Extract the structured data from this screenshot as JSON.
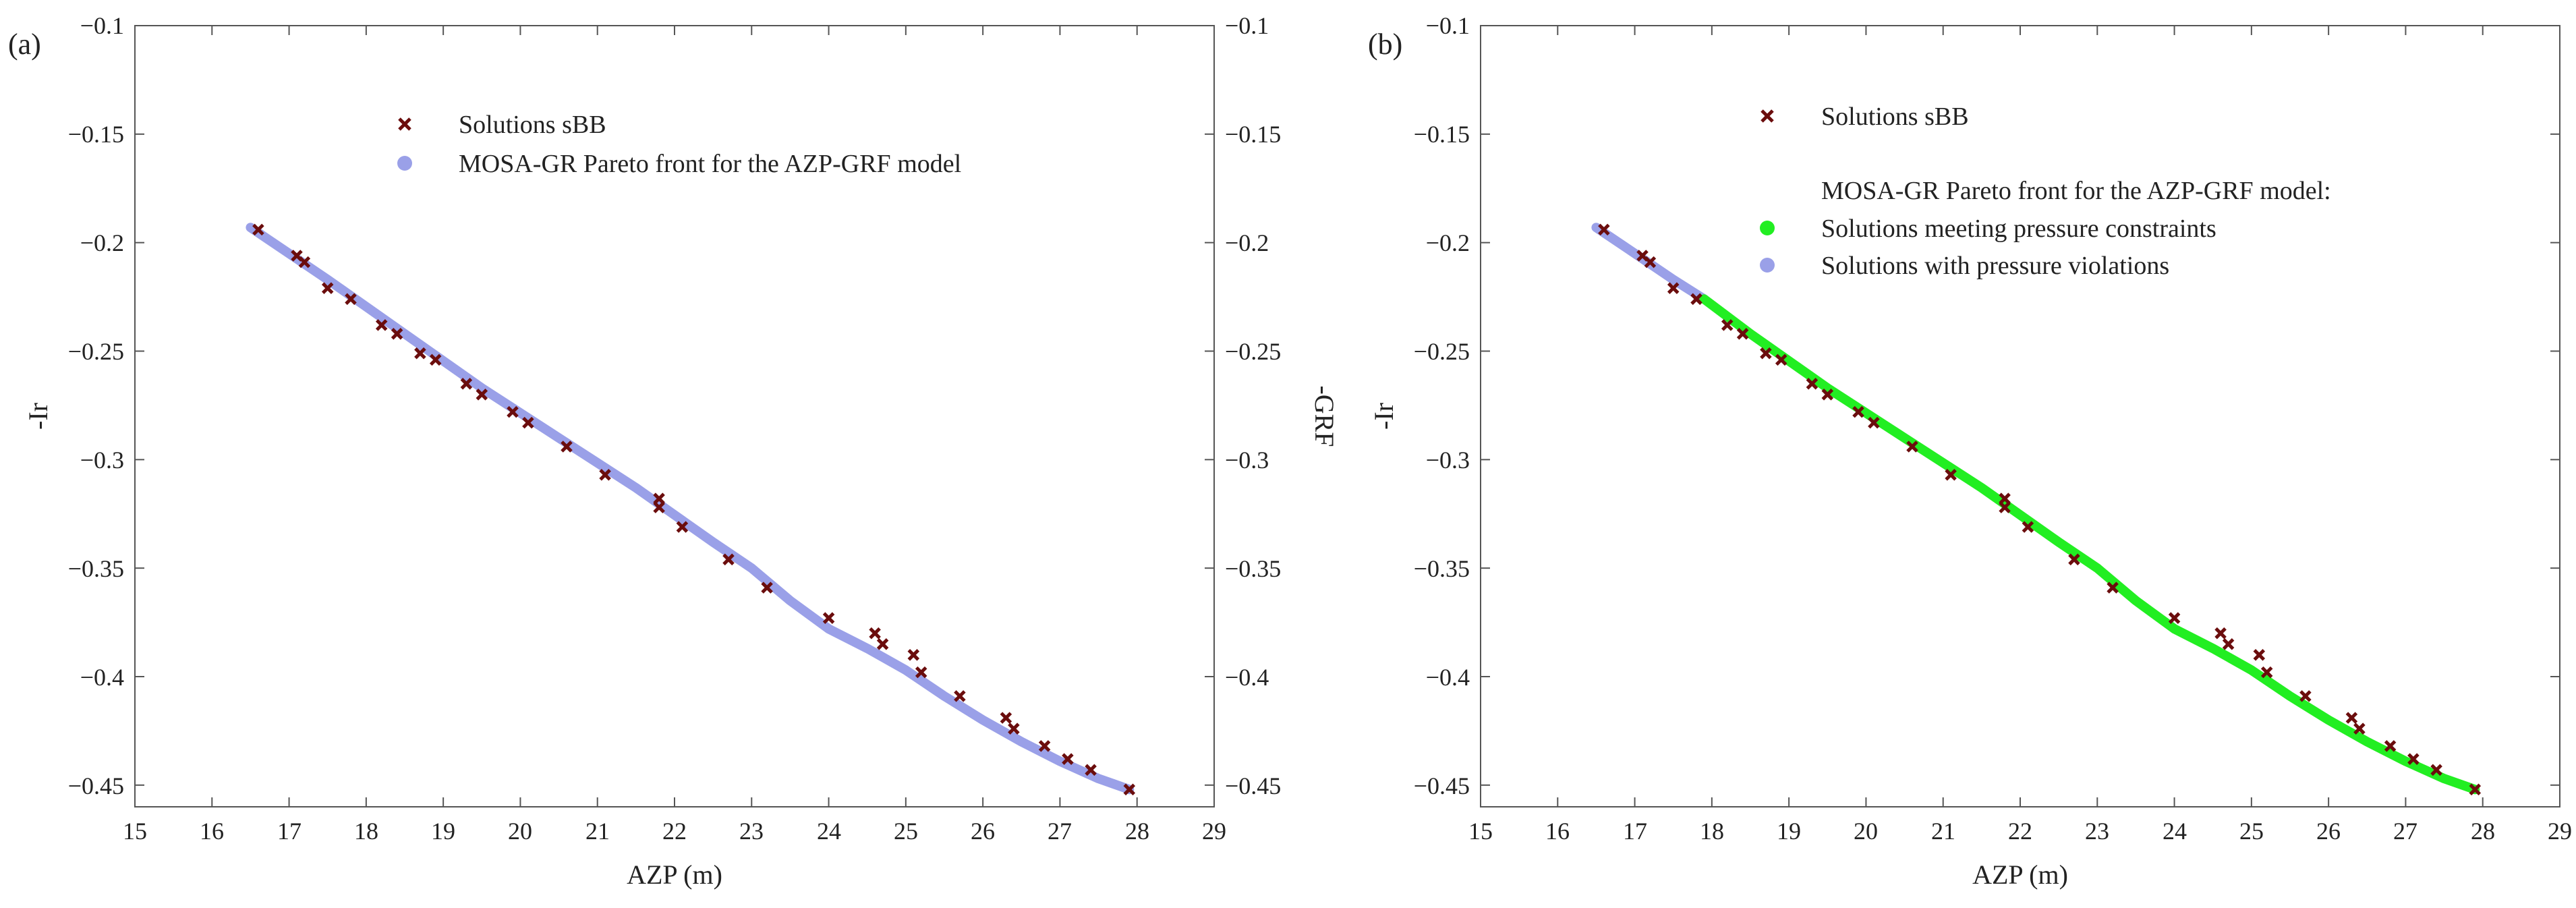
{
  "colors": {
    "solutions": "#6b0d0d",
    "pareto_blue": "#9aa0e8",
    "pareto_green": "#22ee22",
    "axis": "#555555"
  },
  "chart_data": [
    {
      "type": "scatter",
      "panel_label": "(a)",
      "xlabel": "AZP (m)",
      "ylabel": "-Ir",
      "y2label": "-GRF",
      "xlim": [
        15,
        29
      ],
      "ylim": [
        -0.46,
        -0.1
      ],
      "xticks": [
        "15",
        "16",
        "17",
        "18",
        "19",
        "20",
        "21",
        "22",
        "23",
        "24",
        "25",
        "26",
        "27",
        "28",
        "29"
      ],
      "yticks": [
        "−0.1",
        "−0.15",
        "−0.2",
        "−0.25",
        "−0.3",
        "−0.35",
        "−0.4",
        "−0.45"
      ],
      "y2ticks": [
        "−0.1",
        "−0.15",
        "−0.2",
        "−0.25",
        "−0.3",
        "−0.35",
        "−0.4",
        "−0.45"
      ],
      "legend": [
        {
          "label": "Solutions sBB",
          "marker": "x",
          "color": "#6b0d0d"
        },
        {
          "label": "MOSA-GR Pareto front for the AZP-GRF model",
          "marker": "circle",
          "color": "#9aa0e8"
        }
      ],
      "series": [
        {
          "name": "MOSA-GR Pareto front for the AZP-GRF model",
          "kind": "front",
          "segments": [
            {
              "color_key": "pareto_blue",
              "points": [
                [
                  16.5,
                  -0.193
                ],
                [
                  17.5,
                  -0.217
                ],
                [
                  18.5,
                  -0.242
                ],
                [
                  19.5,
                  -0.267
                ],
                [
                  20.5,
                  -0.29
                ],
                [
                  21.5,
                  -0.313
                ],
                [
                  22.5,
                  -0.338
                ],
                [
                  23.0,
                  -0.35
                ],
                [
                  23.5,
                  -0.365
                ],
                [
                  24.0,
                  -0.378
                ],
                [
                  24.5,
                  -0.387
                ],
                [
                  25.0,
                  -0.397
                ],
                [
                  25.5,
                  -0.409
                ],
                [
                  26.0,
                  -0.42
                ],
                [
                  26.5,
                  -0.43
                ],
                [
                  27.0,
                  -0.439
                ],
                [
                  27.5,
                  -0.447
                ],
                [
                  27.9,
                  -0.452
                ]
              ]
            }
          ]
        },
        {
          "name": "Solutions sBB",
          "kind": "points",
          "x": [
            16.6,
            17.1,
            17.2,
            17.5,
            17.8,
            18.2,
            18.4,
            18.7,
            18.9,
            19.3,
            19.5,
            19.9,
            20.1,
            20.6,
            21.1,
            21.8,
            21.8,
            22.1,
            22.7,
            23.2,
            24.0,
            24.6,
            24.7,
            25.1,
            25.2,
            25.7,
            26.3,
            26.4,
            26.8,
            27.1,
            27.4,
            27.9
          ],
          "y": [
            -0.194,
            -0.206,
            -0.209,
            -0.221,
            -0.226,
            -0.238,
            -0.242,
            -0.251,
            -0.254,
            -0.265,
            -0.27,
            -0.278,
            -0.283,
            -0.294,
            -0.307,
            -0.318,
            -0.322,
            -0.331,
            -0.346,
            -0.359,
            -0.373,
            -0.38,
            -0.385,
            -0.39,
            -0.398,
            -0.409,
            -0.419,
            -0.424,
            -0.432,
            -0.438,
            -0.443,
            -0.452
          ]
        }
      ]
    },
    {
      "type": "scatter",
      "panel_label": "(b)",
      "xlabel": "AZP (m)",
      "ylabel": "-Ir",
      "xlim": [
        15,
        29
      ],
      "ylim": [
        -0.46,
        -0.1
      ],
      "xticks": [
        "15",
        "16",
        "17",
        "18",
        "19",
        "20",
        "21",
        "22",
        "23",
        "24",
        "25",
        "26",
        "27",
        "28",
        "29"
      ],
      "yticks": [
        "−0.1",
        "−0.15",
        "−0.2",
        "−0.25",
        "−0.3",
        "−0.35",
        "−0.4",
        "−0.45"
      ],
      "legend": [
        {
          "label": "Solutions sBB",
          "marker": "x",
          "color": "#6b0d0d"
        },
        {
          "label": "MOSA-GR Pareto front for the AZP-GRF model:",
          "marker": "none",
          "color": ""
        },
        {
          "label": "Solutions meeting pressure constraints",
          "marker": "circle",
          "color": "#22ee22"
        },
        {
          "label": "Solutions with pressure violations",
          "marker": "circle",
          "color": "#9aa0e8"
        }
      ],
      "series": [
        {
          "name": "MOSA-GR Pareto front for the AZP-GRF model",
          "kind": "front",
          "segments": [
            {
              "color_key": "pareto_blue",
              "points": [
                [
                  16.5,
                  -0.193
                ],
                [
                  17.0,
                  -0.205
                ],
                [
                  17.5,
                  -0.217
                ],
                [
                  17.9,
                  -0.226
                ]
              ]
            },
            {
              "color_key": "pareto_green",
              "points": [
                [
                  17.9,
                  -0.226
                ],
                [
                  18.5,
                  -0.242
                ],
                [
                  19.5,
                  -0.267
                ],
                [
                  20.5,
                  -0.29
                ],
                [
                  21.5,
                  -0.313
                ],
                [
                  22.5,
                  -0.338
                ],
                [
                  23.0,
                  -0.35
                ],
                [
                  23.5,
                  -0.365
                ],
                [
                  24.0,
                  -0.378
                ],
                [
                  24.5,
                  -0.387
                ],
                [
                  25.0,
                  -0.397
                ],
                [
                  25.5,
                  -0.409
                ],
                [
                  26.0,
                  -0.42
                ],
                [
                  26.5,
                  -0.43
                ],
                [
                  27.0,
                  -0.439
                ],
                [
                  27.5,
                  -0.447
                ],
                [
                  27.9,
                  -0.452
                ]
              ]
            }
          ]
        },
        {
          "name": "Solutions sBB",
          "kind": "points",
          "x": [
            16.6,
            17.1,
            17.2,
            17.5,
            17.8,
            18.2,
            18.4,
            18.7,
            18.9,
            19.3,
            19.5,
            19.9,
            20.1,
            20.6,
            21.1,
            21.8,
            21.8,
            22.1,
            22.7,
            23.2,
            24.0,
            24.6,
            24.7,
            25.1,
            25.2,
            25.7,
            26.3,
            26.4,
            26.8,
            27.1,
            27.4,
            27.9
          ],
          "y": [
            -0.194,
            -0.206,
            -0.209,
            -0.221,
            -0.226,
            -0.238,
            -0.242,
            -0.251,
            -0.254,
            -0.265,
            -0.27,
            -0.278,
            -0.283,
            -0.294,
            -0.307,
            -0.318,
            -0.322,
            -0.331,
            -0.346,
            -0.359,
            -0.373,
            -0.38,
            -0.385,
            -0.39,
            -0.398,
            -0.409,
            -0.419,
            -0.424,
            -0.432,
            -0.438,
            -0.443,
            -0.452
          ]
        }
      ]
    }
  ]
}
